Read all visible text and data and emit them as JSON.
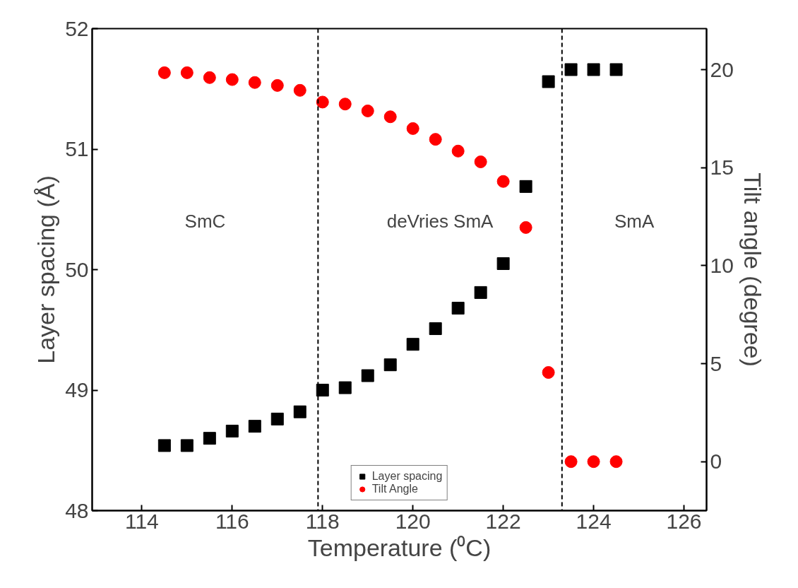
{
  "chart_data": {
    "type": "scatter",
    "xlabel": "Temperature (⁰C)",
    "ylabel": "Layer spacing (Å)",
    "y2label": "Tilt angle (degree)",
    "x": [
      114.5,
      115,
      115.5,
      116,
      116.5,
      117,
      117.5,
      118,
      118.5,
      119,
      119.5,
      120,
      120.5,
      121,
      121.5,
      122,
      122.5,
      123,
      123.5,
      124,
      124.5
    ],
    "xlim": [
      112.9,
      126.5
    ],
    "xticks": [
      114,
      116,
      118,
      120,
      122,
      124,
      126
    ],
    "ylim": [
      48,
      52
    ],
    "yticks": [
      48,
      49,
      50,
      51,
      52
    ],
    "y2lim": [
      -2.5,
      22.1
    ],
    "y2ticks": [
      0,
      5,
      10,
      15,
      20
    ],
    "series": [
      {
        "name": "Layer spacing",
        "color": "#000000",
        "marker": "square",
        "values": [
          48.54,
          48.54,
          48.6,
          48.66,
          48.7,
          48.76,
          48.82,
          49.0,
          49.02,
          49.12,
          49.21,
          49.38,
          49.51,
          49.68,
          49.81,
          50.05,
          50.69,
          51.56,
          51.66,
          51.66,
          51.66
        ]
      },
      {
        "name": "Tilt Angle",
        "color": "#ff0000",
        "marker": "circle",
        "axis": "y2",
        "values": [
          19.85,
          19.85,
          19.6,
          19.5,
          19.35,
          19.2,
          18.95,
          18.35,
          18.25,
          17.9,
          17.6,
          17.0,
          16.45,
          15.85,
          15.3,
          14.3,
          11.95,
          4.55,
          0,
          0,
          0
        ]
      }
    ],
    "ref_lines": [
      {
        "axis": "x",
        "value": 117.9,
        "line_style": "dashed",
        "color": "#000000"
      },
      {
        "axis": "x",
        "value": 123.3,
        "line_style": "dashed",
        "color": "#000000"
      }
    ],
    "annotations": [
      "SmC",
      "deVries SmA",
      "SmA"
    ],
    "legend": "bottom",
    "grid": false
  }
}
